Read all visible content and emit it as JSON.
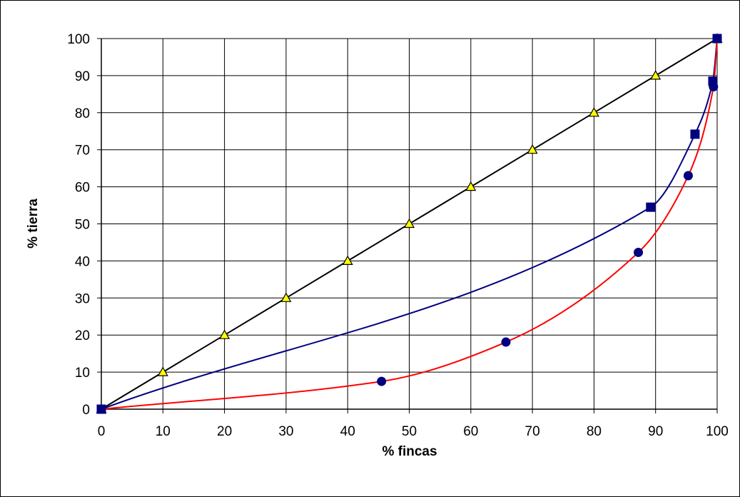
{
  "chart_data": {
    "type": "line",
    "title": "",
    "xlabel": "% fincas",
    "ylabel": "% tierra",
    "xlim": [
      0,
      100
    ],
    "ylim": [
      0,
      100
    ],
    "xticks": [
      "0",
      "10",
      "20",
      "30",
      "40",
      "50",
      "60",
      "70",
      "80",
      "90",
      "100"
    ],
    "yticks": [
      "0",
      "10",
      "20",
      "30",
      "40",
      "50",
      "60",
      "70",
      "80",
      "90",
      "100"
    ],
    "grid": true,
    "legend": "none",
    "series": [
      {
        "color": "#000000",
        "marker": "triangle",
        "marker_color": "#ffff00",
        "smooth": false,
        "x": [
          0,
          10,
          20,
          30,
          40,
          50,
          60,
          70,
          80,
          90,
          100
        ],
        "y": [
          0,
          10,
          20,
          30,
          40,
          50,
          60,
          70,
          80,
          90,
          100
        ]
      },
      {
        "color": "#000080",
        "marker": "square",
        "marker_color": "#000080",
        "smooth": true,
        "x": [
          0,
          89.2,
          96.4,
          99.3,
          100
        ],
        "y": [
          0,
          54.5,
          74.2,
          88.5,
          100
        ]
      },
      {
        "color": "#ff0000",
        "marker": "circle",
        "marker_color": "#000080",
        "smooth": true,
        "x": [
          0,
          45.5,
          65.7,
          87.2,
          95.3,
          99.4,
          100
        ],
        "y": [
          0,
          7.5,
          18.1,
          42.3,
          63.0,
          87.0,
          100
        ]
      }
    ]
  }
}
